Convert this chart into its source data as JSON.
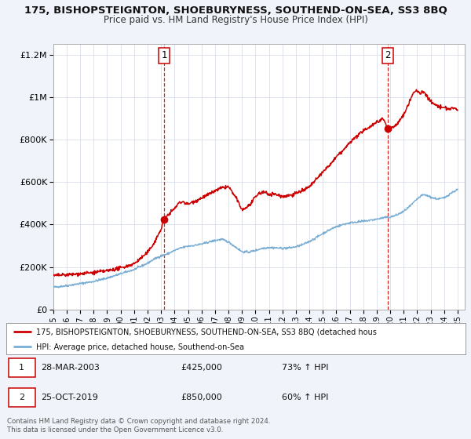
{
  "title": "175, BISHOPSTEIGNTON, SHOEBURYNESS, SOUTHEND-ON-SEA, SS3 8BQ",
  "subtitle": "Price paid vs. HM Land Registry's House Price Index (HPI)",
  "background_color": "#f0f4fa",
  "plot_bg_color": "#ffffff",
  "ylim": [
    0,
    1250000
  ],
  "xlim_start": 1995.0,
  "xlim_end": 2025.5,
  "ytick_labels": [
    "£0",
    "£200K",
    "£400K",
    "£600K",
    "£800K",
    "£1M",
    "£1.2M"
  ],
  "ytick_values": [
    0,
    200000,
    400000,
    600000,
    800000,
    1000000,
    1200000
  ],
  "xtick_years": [
    1995,
    1996,
    1997,
    1998,
    1999,
    2000,
    2001,
    2002,
    2003,
    2004,
    2005,
    2006,
    2007,
    2008,
    2009,
    2010,
    2011,
    2012,
    2013,
    2014,
    2015,
    2016,
    2017,
    2018,
    2019,
    2020,
    2021,
    2022,
    2023,
    2024,
    2025
  ],
  "red_line_color": "#cc0000",
  "blue_line_color": "#7aadd4",
  "marker1_date": 2003.23,
  "marker1_value": 425000,
  "marker2_date": 2019.82,
  "marker2_value": 850000,
  "vline1_x": 2003.23,
  "vline2_x": 2019.82,
  "legend_line1": "175, BISHOPSTEIGNTON, SHOEBURYNESS, SOUTHEND-ON-SEA, SS3 8BQ (detached hous",
  "legend_line2": "HPI: Average price, detached house, Southend-on-Sea",
  "note1_label": "1",
  "note1_date": "28-MAR-2003",
  "note1_price": "£425,000",
  "note1_pct": "73% ↑ HPI",
  "note2_label": "2",
  "note2_date": "25-OCT-2019",
  "note2_price": "£850,000",
  "note2_pct": "60% ↑ HPI",
  "footer": "Contains HM Land Registry data © Crown copyright and database right 2024.\nThis data is licensed under the Open Government Licence v3.0."
}
